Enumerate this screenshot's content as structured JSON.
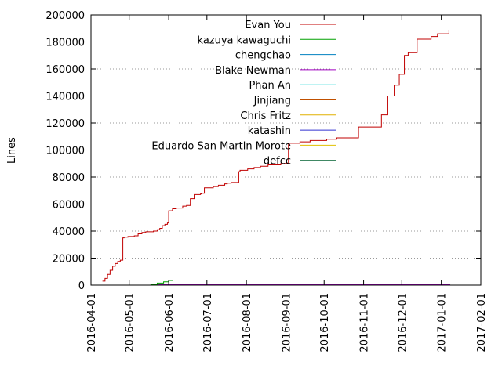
{
  "chart_data": {
    "type": "line",
    "title": "",
    "xlabel": "",
    "ylabel": "Lines",
    "ylim": [
      0,
      200000
    ],
    "xlim": [
      "2016-04-01",
      "2017-02-01"
    ],
    "yticks": [
      0,
      20000,
      40000,
      60000,
      80000,
      100000,
      120000,
      140000,
      160000,
      180000,
      200000
    ],
    "xticks": [
      "2016-04-01",
      "2016-05-01",
      "2016-06-01",
      "2016-07-01",
      "2016-08-01",
      "2016-09-01",
      "2016-10-01",
      "2016-11-01",
      "2016-12-01",
      "2017-01-01",
      "2017-02-01"
    ],
    "grid": "horizontal dotted",
    "legend": "top-right",
    "series": [
      {
        "name": "Evan You",
        "color": "#c00000",
        "x": [
          "2016-04-10",
          "2016-04-12",
          "2016-04-14",
          "2016-04-16",
          "2016-04-18",
          "2016-04-20",
          "2016-04-22",
          "2016-04-24",
          "2016-04-26",
          "2016-04-27",
          "2016-04-30",
          "2016-05-05",
          "2016-05-08",
          "2016-05-11",
          "2016-05-14",
          "2016-05-20",
          "2016-05-23",
          "2016-05-25",
          "2016-05-27",
          "2016-05-29",
          "2016-05-31",
          "2016-06-01",
          "2016-06-04",
          "2016-06-07",
          "2016-06-12",
          "2016-06-15",
          "2016-06-18",
          "2016-06-21",
          "2016-06-26",
          "2016-06-27",
          "2016-06-29",
          "2016-07-06",
          "2016-07-10",
          "2016-07-15",
          "2016-07-17",
          "2016-07-20",
          "2016-07-26",
          "2016-07-27",
          "2016-08-02",
          "2016-08-07",
          "2016-08-12",
          "2016-08-18",
          "2016-08-28",
          "2016-09-03",
          "2016-09-12",
          "2016-09-20",
          "2016-10-03",
          "2016-10-11",
          "2016-10-26",
          "2016-10-28",
          "2016-11-02",
          "2016-11-04",
          "2016-11-12",
          "2016-11-15",
          "2016-11-20",
          "2016-11-24",
          "2016-11-25",
          "2016-11-29",
          "2016-12-03",
          "2016-12-06",
          "2016-12-13",
          "2016-12-24",
          "2016-12-29",
          "2017-01-07"
        ],
        "values": [
          3000,
          5000,
          8000,
          11000,
          14000,
          16000,
          17500,
          18500,
          35000,
          35500,
          36000,
          36500,
          38000,
          39000,
          39500,
          40000,
          41000,
          42000,
          44000,
          45000,
          46000,
          55000,
          56500,
          57000,
          58500,
          59000,
          64000,
          67000,
          67500,
          68000,
          72000,
          73000,
          74000,
          75000,
          75500,
          76000,
          84000,
          85000,
          86000,
          87000,
          88000,
          89000,
          90000,
          105000,
          106000,
          107000,
          108000,
          109000,
          109000,
          117000,
          117000,
          117000,
          117000,
          126000,
          140000,
          140000,
          148000,
          156000,
          170000,
          172000,
          182000,
          184000,
          186000,
          189000
        ]
      },
      {
        "name": "kazuya kawaguchi",
        "color": "#00a000",
        "x": [
          "2016-04-01",
          "2016-05-18",
          "2016-05-23",
          "2016-05-28",
          "2016-06-01",
          "2016-06-04",
          "2017-01-08"
        ],
        "values": [
          0,
          300,
          1500,
          2500,
          3500,
          3800,
          3800
        ]
      },
      {
        "name": "chengchao",
        "color": "#0080c0",
        "x": [
          "2016-04-01",
          "2017-01-08"
        ],
        "values": [
          0,
          0
        ]
      },
      {
        "name": "Blake Newman",
        "color": "#a000c0",
        "x": [
          "2016-05-20",
          "2017-01-08"
        ],
        "values": [
          400,
          400
        ]
      },
      {
        "name": "Phan An",
        "color": "#00d0d0",
        "x": [
          "2016-04-01",
          "2017-01-08"
        ],
        "values": [
          0,
          0
        ]
      },
      {
        "name": "Jinjiang",
        "color": "#c05000",
        "x": [
          "2016-05-20",
          "2017-01-08"
        ],
        "values": [
          300,
          300
        ]
      },
      {
        "name": "Chris Fritz",
        "color": "#e0b000",
        "x": [
          "2016-04-01",
          "2017-01-08"
        ],
        "values": [
          0,
          0
        ]
      },
      {
        "name": "katashin",
        "color": "#3030d0",
        "x": [
          "2016-04-01",
          "2017-01-08"
        ],
        "values": [
          0,
          0
        ]
      },
      {
        "name": "Eduardo San Martin Morote",
        "color": "#e0c000",
        "x": [
          "2016-04-01",
          "2017-01-08"
        ],
        "values": [
          0,
          0
        ]
      },
      {
        "name": "defcc",
        "color": "#006030",
        "x": [
          "2016-04-01",
          "2016-10-30",
          "2016-11-02",
          "2017-01-08"
        ],
        "values": [
          0,
          0,
          800,
          800
        ]
      }
    ]
  }
}
